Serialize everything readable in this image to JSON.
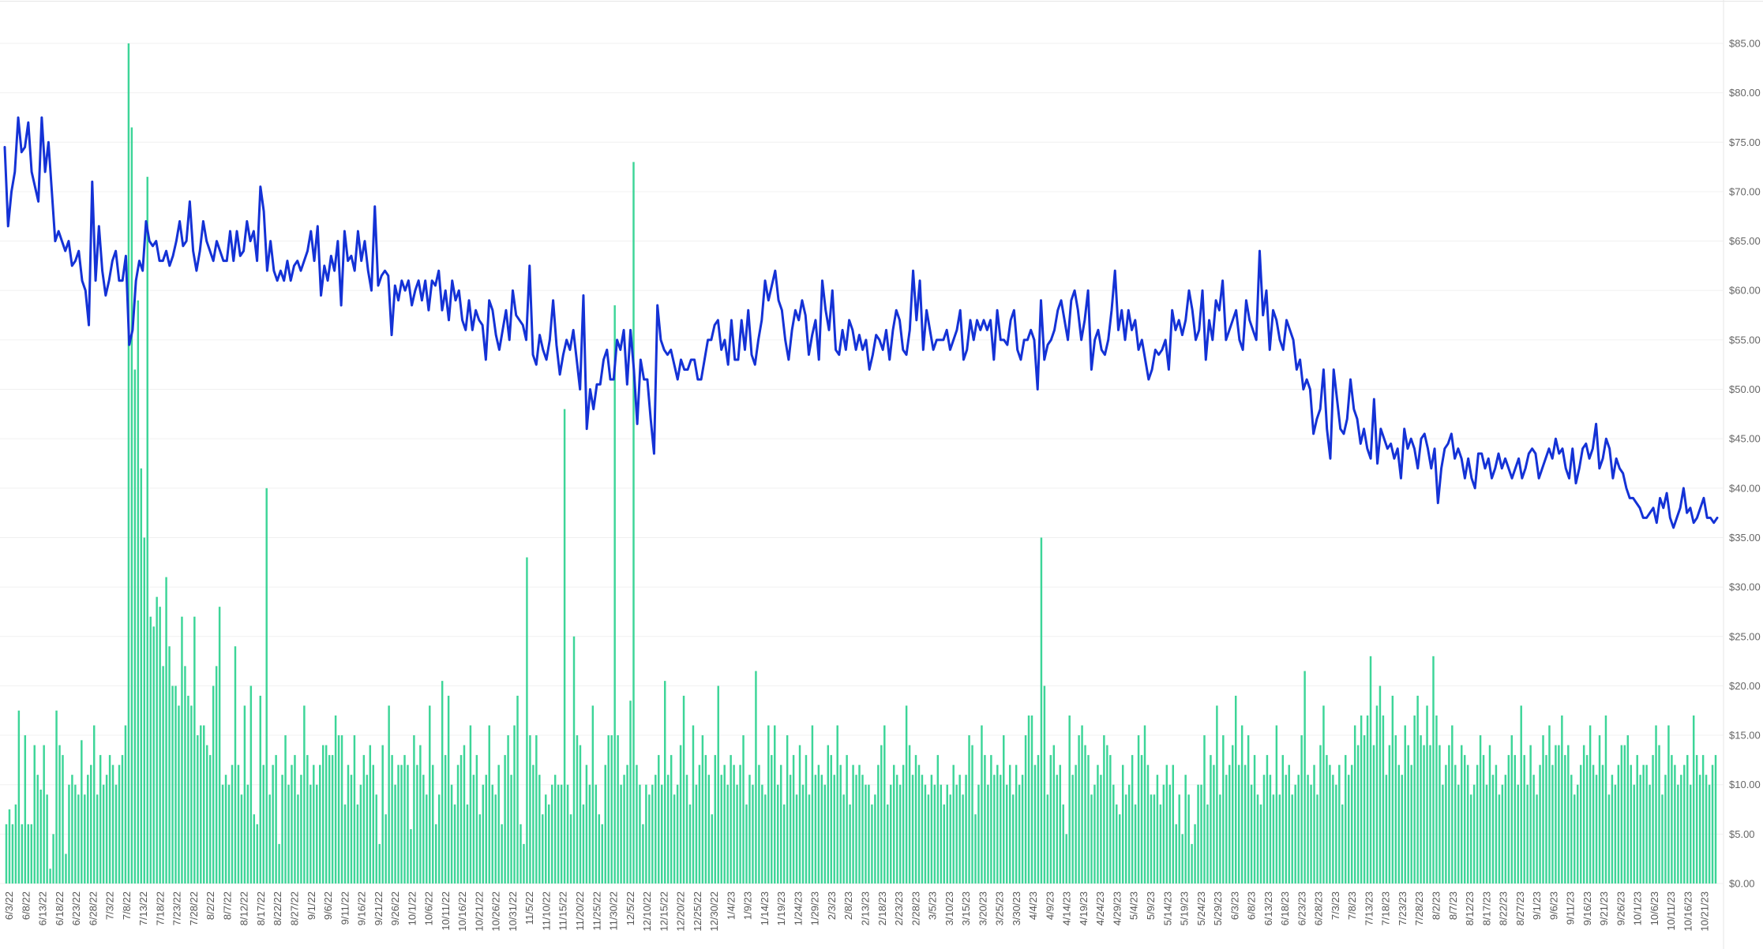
{
  "chart_data": {
    "type": "bar+line",
    "title": "",
    "xlabel": "",
    "ylabel": "",
    "ylim": [
      0,
      85
    ],
    "y_ticks": [
      "$0.00",
      "$5.00",
      "$10.00",
      "$15.00",
      "$20.00",
      "$25.00",
      "$30.00",
      "$35.00",
      "$40.00",
      "$45.00",
      "$50.00",
      "$55.00",
      "$60.00",
      "$65.00",
      "$70.00",
      "$75.00",
      "$80.00",
      "$85.00"
    ],
    "x_tick_labels": [
      "6/3/22",
      "6/8/22",
      "6/13/22",
      "6/18/22",
      "6/23/22",
      "6/28/22",
      "7/3/22",
      "7/8/22",
      "7/13/22",
      "7/18/22",
      "7/23/22",
      "7/28/22",
      "8/2/22",
      "8/7/22",
      "8/12/22",
      "8/17/22",
      "8/22/22",
      "8/27/22",
      "9/1/22",
      "9/6/22",
      "9/11/22",
      "9/16/22",
      "9/21/22",
      "9/26/22",
      "10/1/22",
      "10/6/22",
      "10/11/22",
      "10/16/22",
      "10/21/22",
      "10/26/22",
      "10/31/22",
      "11/5/22",
      "11/10/22",
      "11/15/22",
      "11/20/22",
      "11/25/22",
      "11/30/22",
      "12/5/22",
      "12/10/22",
      "12/15/22",
      "12/20/22",
      "12/25/22",
      "12/30/22",
      "1/4/23",
      "1/9/23",
      "1/14/23",
      "1/19/23",
      "1/24/23",
      "1/29/23",
      "2/3/23",
      "2/8/23",
      "2/13/23",
      "2/18/23",
      "2/23/23",
      "2/28/23",
      "3/5/23",
      "3/10/23",
      "3/15/23",
      "3/20/23",
      "3/25/23",
      "3/30/23",
      "4/4/23",
      "4/9/23",
      "4/14/23",
      "4/19/23",
      "4/24/23",
      "4/29/23",
      "5/4/23",
      "5/9/23",
      "5/14/23",
      "5/19/23",
      "5/24/23",
      "5/29/23",
      "6/3/23",
      "6/8/23",
      "6/13/23",
      "6/18/23",
      "6/23/23",
      "6/28/23",
      "7/3/23",
      "7/8/23",
      "7/13/23",
      "7/18/23",
      "7/23/23",
      "7/28/23",
      "8/2/23",
      "8/7/23",
      "8/12/23",
      "8/17/23",
      "8/22/23",
      "8/27/23",
      "9/1/23",
      "9/6/23",
      "9/11/23",
      "9/16/23",
      "9/21/23",
      "9/26/23",
      "10/1/23",
      "10/6/23",
      "10/11/23",
      "10/16/23",
      "10/21/23"
    ],
    "series": [
      {
        "type": "bar",
        "color": "#3dd598",
        "values": [
          6,
          7.5,
          6,
          8,
          17.5,
          6,
          15,
          6,
          6,
          14,
          11,
          9.5,
          14,
          9,
          1.5,
          5,
          17.5,
          14,
          13,
          3,
          10,
          11,
          10,
          9,
          14.5,
          9,
          11,
          12,
          16,
          9,
          13,
          10,
          11,
          13,
          12,
          10,
          12,
          13,
          16,
          85,
          76.5,
          52,
          59,
          42,
          35,
          71.5,
          27,
          26,
          29,
          28,
          22,
          31,
          24,
          20,
          20,
          18,
          27,
          22,
          19,
          18,
          27,
          15,
          16,
          16,
          14,
          13,
          20,
          22,
          28,
          10,
          11,
          10,
          12,
          24,
          12,
          9,
          18,
          10,
          20,
          7,
          6,
          19,
          12,
          40,
          9,
          12,
          13,
          4,
          11,
          15,
          10,
          12,
          13,
          9,
          11,
          18,
          13,
          10,
          12,
          10,
          12,
          14,
          14,
          13,
          13,
          17,
          15,
          15,
          8,
          12,
          11,
          15,
          8,
          10,
          13,
          11,
          14,
          12,
          9,
          4,
          14,
          7,
          18,
          13,
          10,
          12,
          12,
          13,
          12,
          5.5,
          15,
          12,
          14,
          11,
          9,
          18,
          12,
          6,
          9,
          20.5,
          13,
          19,
          10,
          8,
          12,
          13,
          14,
          8,
          16,
          11,
          13,
          7,
          10,
          11,
          16,
          10,
          9,
          12,
          6,
          13,
          15,
          11,
          16,
          19,
          6,
          4,
          33,
          15,
          12,
          15,
          11,
          7,
          9,
          8,
          10,
          11,
          10,
          10,
          48,
          10,
          7,
          25,
          15,
          14,
          8,
          12,
          10,
          18,
          10,
          7,
          6,
          12,
          15,
          15,
          58.5,
          15,
          10,
          11,
          12,
          18.5,
          73,
          12,
          10,
          6,
          10,
          9,
          10,
          11,
          13,
          10,
          20.5,
          11,
          13,
          9,
          10,
          14,
          19,
          11,
          8,
          16,
          10,
          12,
          15,
          13,
          11,
          7,
          13,
          20,
          11,
          12,
          10,
          13,
          12,
          10,
          12,
          15,
          8,
          11,
          10,
          21.5,
          12,
          10,
          9,
          16,
          13,
          16,
          10,
          12,
          8,
          15,
          11,
          13,
          9,
          14,
          10,
          13,
          9,
          16,
          11,
          12,
          11,
          10,
          14,
          13,
          11,
          16,
          12,
          9,
          13,
          8,
          12,
          11,
          12,
          11,
          10,
          10,
          8,
          9,
          12,
          14,
          16,
          8,
          10,
          12,
          11,
          10,
          12,
          18,
          14,
          11,
          13,
          12,
          11,
          10,
          9,
          11,
          10,
          13,
          10,
          8,
          10,
          9,
          12,
          10,
          11,
          9,
          11,
          15,
          14,
          7,
          10,
          16,
          13,
          10,
          13,
          11,
          12,
          11,
          15,
          10,
          12,
          9,
          12,
          10,
          11,
          15,
          17,
          17,
          12,
          13,
          35,
          20,
          9,
          13,
          14,
          11,
          12,
          8,
          5,
          17,
          11,
          12,
          15,
          16,
          14,
          13,
          9,
          10,
          12,
          11,
          15,
          14,
          13,
          10,
          8,
          7,
          12,
          9,
          10,
          13,
          8,
          15,
          13,
          16,
          12,
          9,
          9,
          11,
          8,
          10,
          12,
          10,
          12,
          6,
          9,
          5,
          11,
          9,
          4,
          6,
          10,
          10,
          15,
          8,
          13,
          12,
          18,
          9,
          15,
          11,
          12,
          14,
          19,
          12,
          16,
          12,
          15,
          10,
          13,
          9,
          8,
          11,
          13,
          11,
          9,
          16,
          9,
          13,
          11,
          12,
          9,
          10,
          11,
          15,
          21.5,
          11,
          10,
          12,
          9,
          14,
          18,
          13,
          12,
          11,
          10,
          12,
          8,
          13,
          11,
          12,
          16,
          14,
          17,
          15,
          17,
          23,
          14,
          18,
          20,
          17,
          11,
          14,
          19,
          15,
          12,
          11,
          16,
          14,
          12,
          17,
          19,
          15,
          14,
          18,
          14,
          23,
          17,
          14,
          10,
          12,
          14,
          16,
          12,
          10,
          14,
          13,
          12,
          9,
          10,
          12,
          15,
          13,
          10,
          14,
          11,
          12,
          9,
          10,
          11,
          13,
          15,
          13,
          10,
          18,
          13,
          10,
          14,
          11,
          9,
          12,
          15,
          13,
          16,
          12,
          14,
          14,
          17,
          13,
          14,
          11,
          9,
          10,
          12,
          14,
          13,
          16,
          12,
          11,
          15,
          12,
          17,
          9,
          11,
          10,
          12,
          14,
          14,
          15,
          12,
          10,
          13,
          11,
          12,
          12,
          10,
          13,
          16,
          14,
          9,
          11,
          16,
          13,
          12,
          10,
          11,
          12,
          13,
          10,
          17,
          13,
          11,
          13,
          11,
          10,
          12,
          13
        ]
      },
      {
        "type": "line",
        "color": "#1432d6",
        "values": [
          74.5,
          66.5,
          70,
          72,
          77.5,
          74,
          74.5,
          77,
          72,
          70.5,
          69,
          77.5,
          72,
          75,
          70,
          65,
          66,
          65,
          64,
          65,
          62.5,
          63,
          64,
          61,
          60,
          56.5,
          71,
          61,
          66.5,
          62,
          59.5,
          61,
          63,
          64,
          61,
          61,
          63.5,
          54.5,
          56,
          61,
          63,
          62,
          67,
          65,
          64.5,
          65,
          63,
          63,
          64,
          62.5,
          63.5,
          65,
          67,
          64.5,
          65,
          69,
          64,
          62,
          64,
          67,
          65,
          64,
          63,
          65,
          64,
          63,
          63,
          66,
          63,
          66,
          63.5,
          64,
          67,
          65,
          66,
          63,
          70.5,
          68,
          62,
          65,
          62,
          61,
          62,
          61,
          63,
          61,
          62.5,
          63,
          62,
          63,
          64,
          66,
          63,
          66.5,
          59.5,
          62.5,
          61,
          63.5,
          62,
          65,
          58.5,
          66,
          63,
          63.5,
          62,
          66,
          63,
          65,
          62,
          60,
          68.5,
          60.5,
          61.5,
          62,
          61.5,
          55.5,
          60.5,
          59,
          61,
          60,
          61,
          58.5,
          60,
          61,
          59,
          61,
          58,
          61,
          60.5,
          62,
          58,
          60,
          57,
          61,
          59,
          60,
          57,
          56,
          59,
          56,
          58,
          57,
          56.5,
          53,
          59,
          58,
          55.5,
          54,
          56,
          58,
          55,
          60,
          57.5,
          57,
          56.5,
          55,
          62.5,
          53.5,
          52.5,
          55.5,
          54,
          53,
          55,
          59,
          54.5,
          51.5,
          53.5,
          55,
          54,
          56,
          53,
          50,
          59.5,
          46,
          50,
          48,
          50.5,
          50.5,
          53,
          54,
          51,
          51,
          55,
          54,
          56,
          50.5,
          56,
          52,
          46.5,
          53,
          51,
          51,
          47,
          43.5,
          58.5,
          55,
          54,
          53.5,
          54,
          52.5,
          51,
          53,
          52,
          52,
          53,
          53,
          51,
          51,
          53,
          55,
          55,
          56.5,
          57,
          54,
          55,
          52.5,
          57,
          53,
          53,
          57,
          54,
          58,
          53.5,
          52.5,
          55,
          57,
          61,
          59,
          60.5,
          62,
          59,
          58,
          55,
          53,
          56,
          58,
          57,
          59,
          57.5,
          53.5,
          55.5,
          57,
          53,
          61,
          58,
          56,
          60,
          54,
          53.5,
          56,
          54,
          57,
          56,
          54,
          55.5,
          54,
          55,
          52,
          53.5,
          55.5,
          55,
          54,
          56,
          53,
          56,
          58,
          57,
          54,
          53.5,
          56,
          62,
          57,
          61,
          54,
          58,
          56,
          54,
          55,
          55,
          55,
          56,
          54,
          55,
          56,
          58,
          53,
          54,
          57,
          55,
          57,
          56,
          57,
          56,
          57,
          53,
          58,
          55,
          55,
          54.5,
          57,
          58,
          54,
          53,
          55,
          55,
          56,
          55,
          50,
          59,
          53,
          54.5,
          55,
          56,
          58,
          59,
          57,
          55,
          59,
          60,
          58,
          55,
          57,
          60,
          52,
          55,
          56,
          54,
          53.5,
          55,
          58,
          62,
          56,
          58,
          55,
          58,
          56,
          57,
          54,
          55,
          53,
          51,
          52,
          54,
          53.5,
          54,
          55,
          52,
          58,
          56,
          57,
          55.5,
          57,
          60,
          58,
          55,
          56,
          60,
          53,
          57,
          55,
          59,
          58,
          61,
          55,
          56,
          57,
          58,
          55,
          54,
          59,
          57,
          56,
          55,
          64,
          57.5,
          60,
          54,
          58,
          57,
          55,
          54,
          57,
          56,
          55,
          52,
          53,
          50,
          51,
          50,
          45.5,
          47,
          48,
          52,
          46,
          43,
          52,
          49,
          46,
          45.5,
          47,
          51,
          48,
          47,
          44.5,
          46,
          44,
          43,
          49,
          42.5,
          46,
          45,
          44,
          44.5,
          43,
          44,
          41,
          46,
          44,
          45,
          44,
          42,
          45,
          45.5,
          44,
          42,
          44,
          38.5,
          42,
          44,
          44.5,
          45.5,
          43,
          44,
          43,
          41,
          43,
          41,
          40,
          43.5,
          43.5,
          42,
          43,
          41,
          42,
          43.5,
          42,
          43,
          42,
          41,
          42,
          43,
          41,
          42,
          43.5,
          44,
          43.5,
          41,
          42,
          43,
          44,
          43,
          45,
          43.5,
          44,
          42,
          41,
          44,
          40.5,
          42,
          44,
          44.5,
          43,
          44,
          46.5,
          42,
          43,
          45,
          44,
          41,
          43,
          42,
          41.5,
          40,
          39,
          39,
          38.5,
          38,
          37,
          37,
          37.5,
          38,
          36.5,
          39,
          38,
          39.5,
          37,
          36,
          37,
          38,
          40,
          37.5,
          38,
          36.5,
          37,
          38,
          39,
          37,
          37,
          36.5,
          37
        ]
      }
    ]
  }
}
